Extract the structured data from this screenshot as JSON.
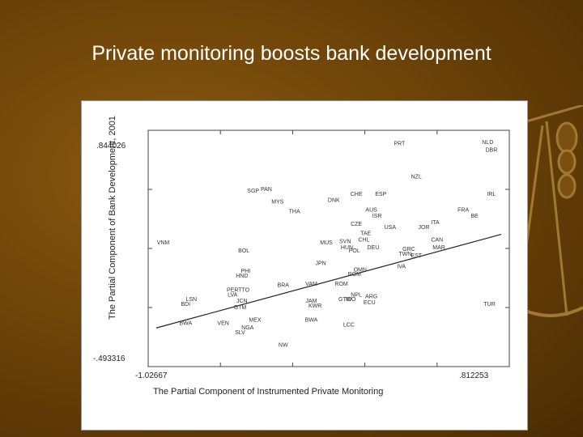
{
  "title": "Private monitoring boosts bank development",
  "chart_data": {
    "type": "scatter",
    "title": "",
    "xlabel": "The Partial Component of Instrumented Private Monitoring",
    "ylabel": "The Partial Component of Bank Development, 2001",
    "xlim": [
      -1.02667,
      0.812253
    ],
    "ylim": [
      -0.493316,
      0.844026
    ],
    "x_tick_labels": [
      "-1.02667",
      ".812253"
    ],
    "y_tick_labels": [
      ".844026",
      "-.493316"
    ],
    "fit_line": [
      [
        -1.02667,
        -0.33
      ],
      [
        0.812253,
        0.265
      ]
    ],
    "points": [
      {
        "label": "NLD",
        "x": 0.74,
        "y": 0.84
      },
      {
        "label": "DBR",
        "x": 0.76,
        "y": 0.79
      },
      {
        "label": "PRT",
        "x": 0.27,
        "y": 0.83
      },
      {
        "label": "NZL",
        "x": 0.36,
        "y": 0.62
      },
      {
        "label": "SGP",
        "x": -0.51,
        "y": 0.53
      },
      {
        "label": "PAN",
        "x": -0.44,
        "y": 0.54
      },
      {
        "label": "MYS",
        "x": -0.38,
        "y": 0.46
      },
      {
        "label": "CHE",
        "x": 0.04,
        "y": 0.51
      },
      {
        "label": "ESP",
        "x": 0.17,
        "y": 0.51
      },
      {
        "label": "IRL",
        "x": 0.76,
        "y": 0.51
      },
      {
        "label": "DNK",
        "x": -0.08,
        "y": 0.47
      },
      {
        "label": "THA",
        "x": -0.29,
        "y": 0.4
      },
      {
        "label": "AUS",
        "x": 0.12,
        "y": 0.41
      },
      {
        "label": "FRA",
        "x": 0.61,
        "y": 0.41
      },
      {
        "label": "ISR",
        "x": 0.15,
        "y": 0.37
      },
      {
        "label": "BE",
        "x": 0.67,
        "y": 0.37
      },
      {
        "label": "CZE",
        "x": 0.04,
        "y": 0.32
      },
      {
        "label": "ITA",
        "x": 0.46,
        "y": 0.33
      },
      {
        "label": "JOR",
        "x": 0.4,
        "y": 0.3
      },
      {
        "label": "USA",
        "x": 0.22,
        "y": 0.3
      },
      {
        "label": "TAE",
        "x": 0.09,
        "y": 0.26
      },
      {
        "label": "CHL",
        "x": 0.08,
        "y": 0.22
      },
      {
        "label": "CAN",
        "x": 0.47,
        "y": 0.22
      },
      {
        "label": "VNM",
        "x": -0.99,
        "y": 0.2
      },
      {
        "label": "MUS",
        "x": -0.12,
        "y": 0.2
      },
      {
        "label": "SVN",
        "x": -0.02,
        "y": 0.21
      },
      {
        "label": "HUN",
        "x": -0.01,
        "y": 0.17
      },
      {
        "label": "POL",
        "x": 0.03,
        "y": 0.15
      },
      {
        "label": "DEU",
        "x": 0.13,
        "y": 0.17
      },
      {
        "label": "GRC",
        "x": 0.32,
        "y": 0.16
      },
      {
        "label": "MAR",
        "x": 0.48,
        "y": 0.17
      },
      {
        "label": "TWN",
        "x": 0.3,
        "y": 0.13
      },
      {
        "label": "EST",
        "x": 0.36,
        "y": 0.12
      },
      {
        "label": "BOL",
        "x": -0.56,
        "y": 0.15
      },
      {
        "label": "JPN",
        "x": -0.15,
        "y": 0.07
      },
      {
        "label": "IVA",
        "x": 0.28,
        "y": 0.05
      },
      {
        "label": "PHI",
        "x": -0.55,
        "y": 0.02
      },
      {
        "label": "HND",
        "x": -0.57,
        "y": -0.01
      },
      {
        "label": "OMN",
        "x": 0.06,
        "y": 0.03
      },
      {
        "label": "ROM",
        "x": 0.03,
        "y": 0.0
      },
      {
        "label": "BRA",
        "x": -0.35,
        "y": -0.07
      },
      {
        "label": "VAM",
        "x": -0.2,
        "y": -0.06
      },
      {
        "label": "ROM",
        "x": -0.04,
        "y": -0.06
      },
      {
        "label": "PER",
        "x": -0.62,
        "y": -0.1
      },
      {
        "label": "TTO",
        "x": -0.56,
        "y": -0.1
      },
      {
        "label": "LVA",
        "x": -0.62,
        "y": -0.13
      },
      {
        "label": "LSN",
        "x": -0.84,
        "y": -0.16
      },
      {
        "label": "BDI",
        "x": -0.87,
        "y": -0.19
      },
      {
        "label": "JCN",
        "x": -0.57,
        "y": -0.17
      },
      {
        "label": "GTM",
        "x": -0.58,
        "y": -0.21
      },
      {
        "label": "JAM",
        "x": -0.2,
        "y": -0.17
      },
      {
        "label": "KWR",
        "x": -0.18,
        "y": -0.2
      },
      {
        "label": "NPL",
        "x": 0.04,
        "y": -0.13
      },
      {
        "label": "GTW",
        "x": -0.02,
        "y": -0.16
      },
      {
        "label": "IDO",
        "x": 0.01,
        "y": -0.16
      },
      {
        "label": "ARG",
        "x": 0.12,
        "y": -0.14
      },
      {
        "label": "ECU",
        "x": 0.11,
        "y": -0.18
      },
      {
        "label": "TUR",
        "x": 0.75,
        "y": -0.19
      },
      {
        "label": "BWA",
        "x": -0.87,
        "y": -0.31
      },
      {
        "label": "VEN",
        "x": -0.67,
        "y": -0.31
      },
      {
        "label": "MEX",
        "x": -0.5,
        "y": -0.29
      },
      {
        "label": "BWA",
        "x": -0.2,
        "y": -0.29
      },
      {
        "label": "LCC",
        "x": 0.0,
        "y": -0.32
      },
      {
        "label": "NGA",
        "x": -0.54,
        "y": -0.34
      },
      {
        "label": "SLV",
        "x": -0.58,
        "y": -0.37
      },
      {
        "label": "NW",
        "x": -0.35,
        "y": -0.45
      }
    ]
  }
}
